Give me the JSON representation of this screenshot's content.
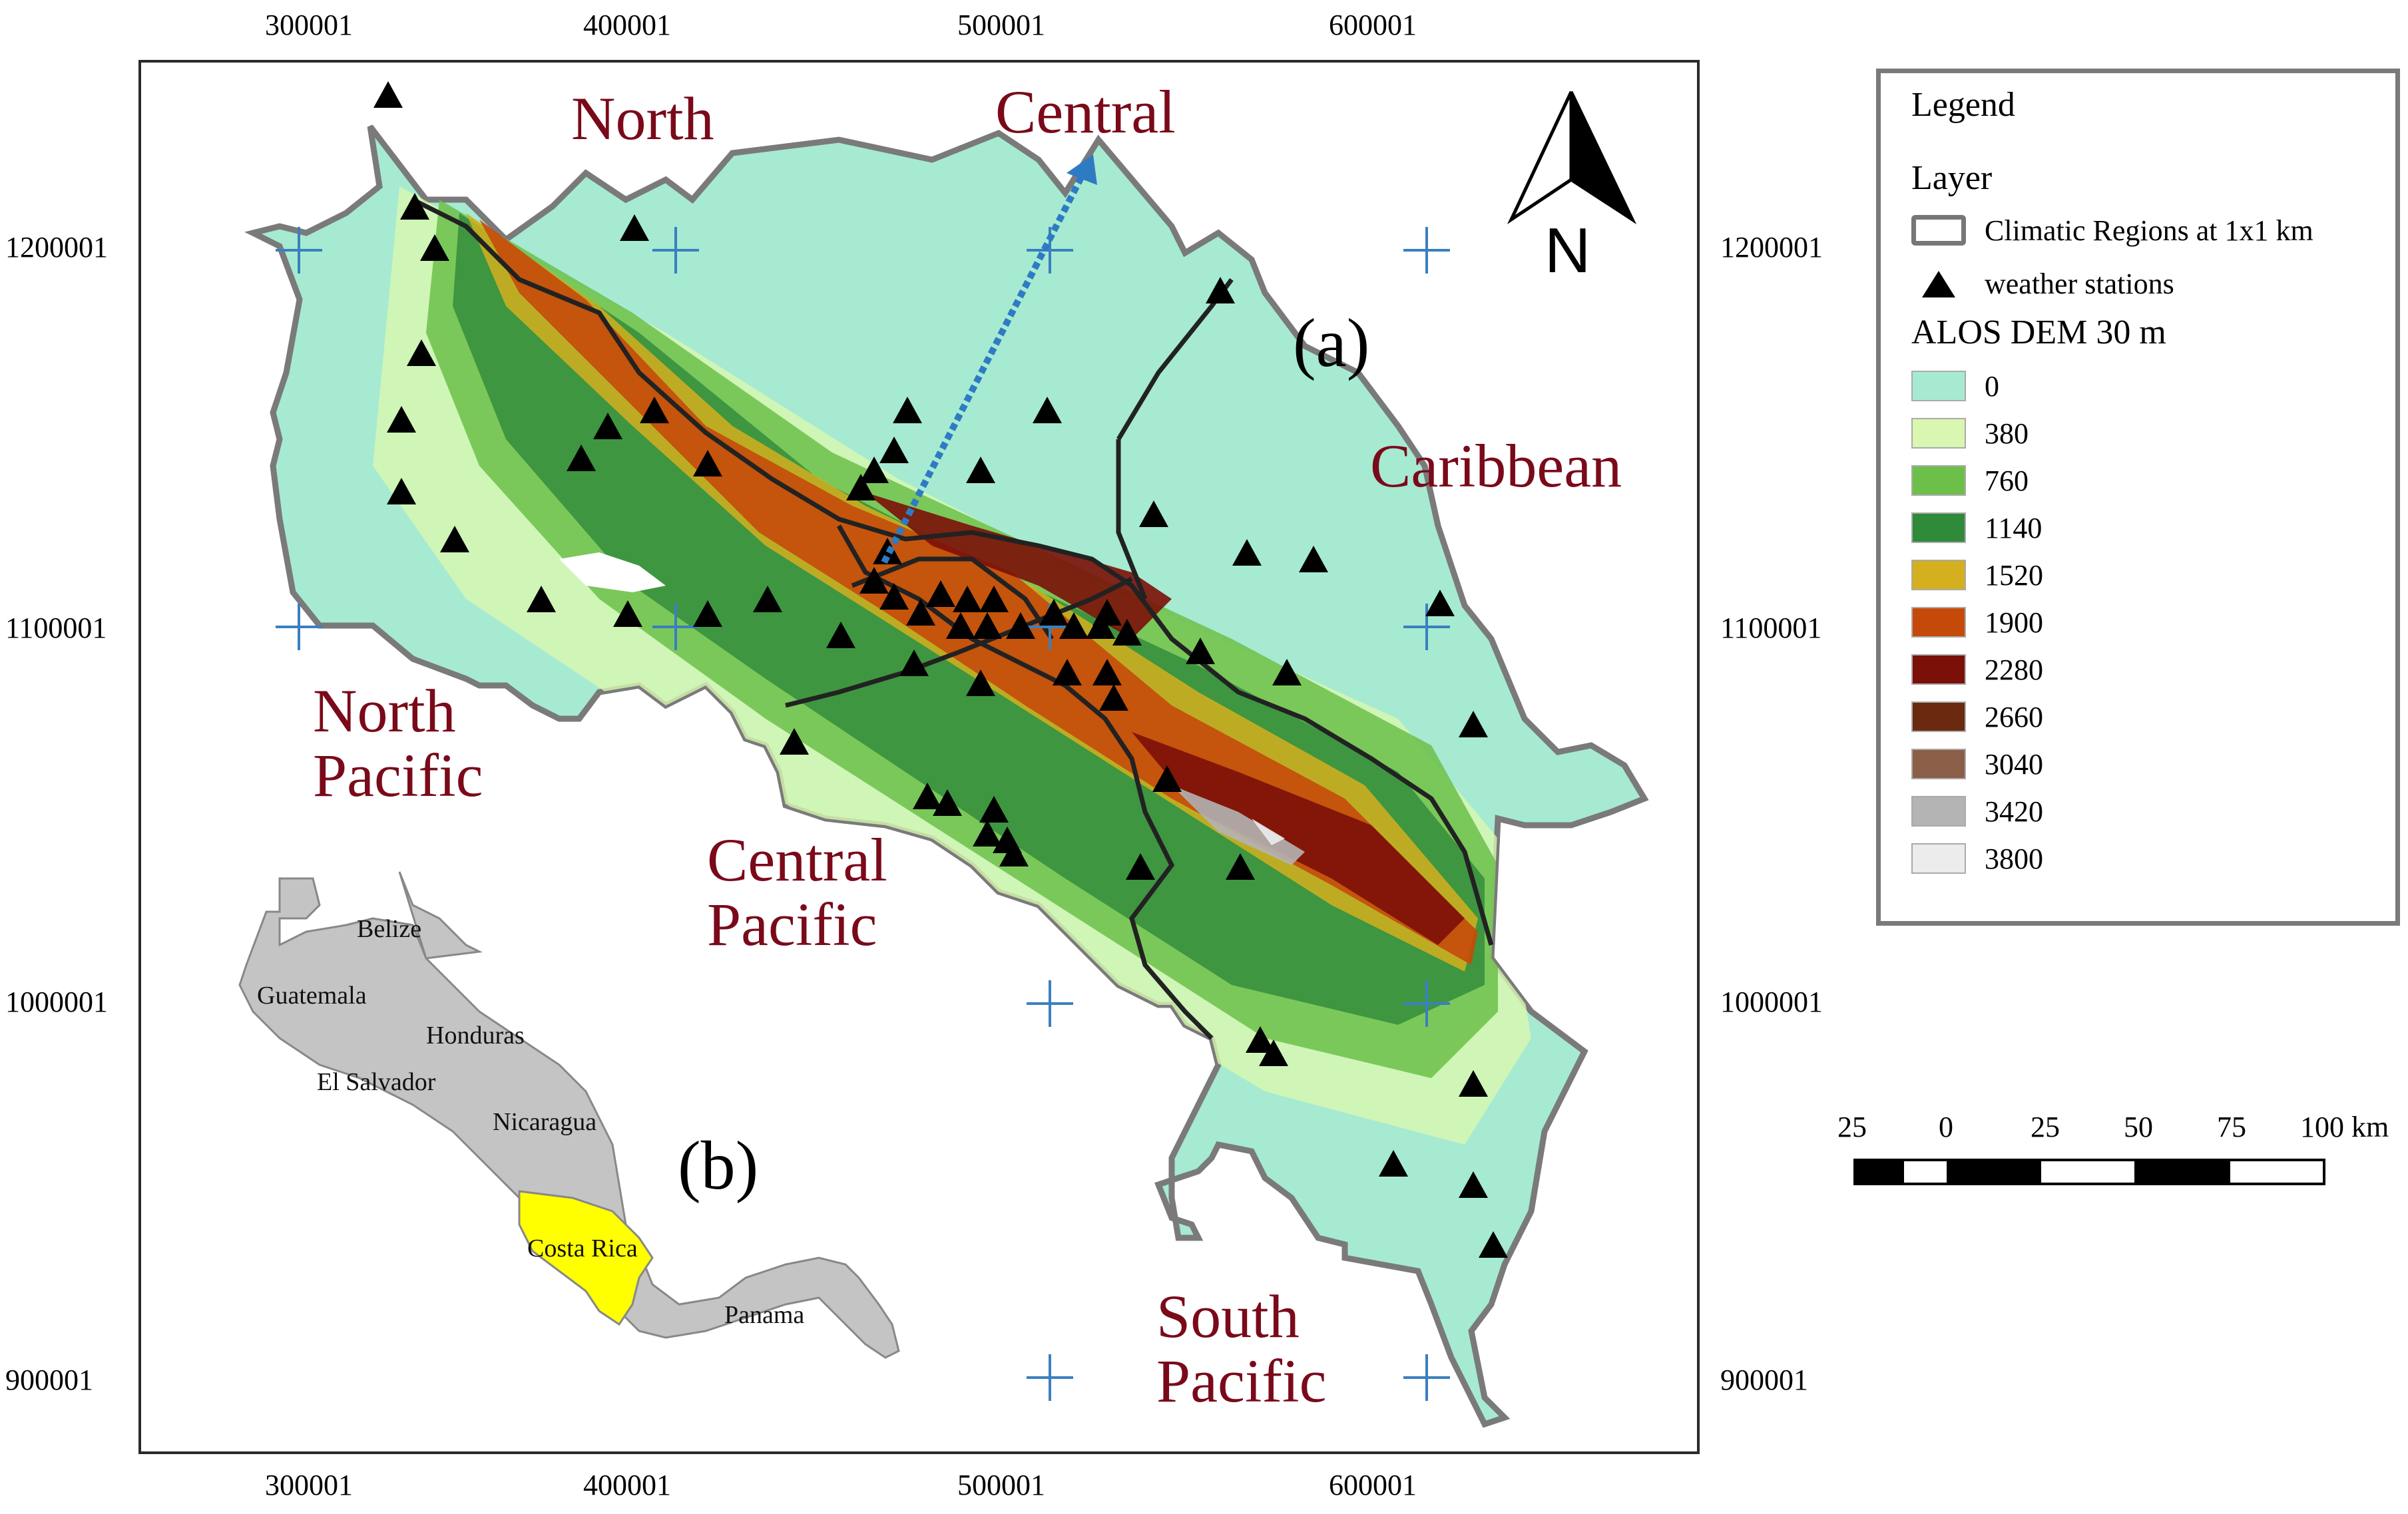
{
  "axes": {
    "x_ticks": [
      "300001",
      "400001",
      "500001",
      "600001"
    ],
    "y_ticks": [
      "1200001",
      "1100001",
      "1000001",
      "900001"
    ]
  },
  "regions": {
    "north": "North",
    "central": "Central",
    "caribbean": "Caribbean",
    "north_pacific": [
      "North",
      "Pacific"
    ],
    "central_pacific": [
      "Central",
      "Pacific"
    ],
    "south_pacific": [
      "South",
      "Pacific"
    ]
  },
  "panels": {
    "a": "(a)",
    "b": "(b)"
  },
  "north_arrow": {
    "letter": "N"
  },
  "inset": {
    "countries": [
      "Belize",
      "Guatemala",
      "Honduras",
      "El Salvador",
      "Nicaragua",
      "Costa Rica",
      "Panama"
    ],
    "highlight_color": "#ffff00",
    "base_color": "#c4c4c4"
  },
  "legend": {
    "title": "Legend",
    "layer_heading": "Layer",
    "region_layer": "Climatic Regions at 1x1 km",
    "station_layer": "weather stations",
    "dem_heading": "ALOS DEM 30 m",
    "dem_classes": [
      {
        "value": "0",
        "color": "#a6ead2"
      },
      {
        "value": "380",
        "color": "#d9f7b0"
      },
      {
        "value": "760",
        "color": "#6cc04a"
      },
      {
        "value": "1140",
        "color": "#2f8a3a"
      },
      {
        "value": "1520",
        "color": "#d4b01e"
      },
      {
        "value": "1900",
        "color": "#c54a0a"
      },
      {
        "value": "2280",
        "color": "#7b1008"
      },
      {
        "value": "2660",
        "color": "#6b2a10"
      },
      {
        "value": "3040",
        "color": "#8b5e48"
      },
      {
        "value": "3420",
        "color": "#b4b4b4"
      },
      {
        "value": "3800",
        "color": "#ececec"
      }
    ]
  },
  "scale_bar": {
    "labels": [
      "25",
      "0",
      "25",
      "50",
      "75",
      "100 km"
    ]
  },
  "colors": {
    "region_text": "#7a0a1a",
    "grid_cross": "#3a7fc0",
    "arrow": "#2e7bc4"
  }
}
